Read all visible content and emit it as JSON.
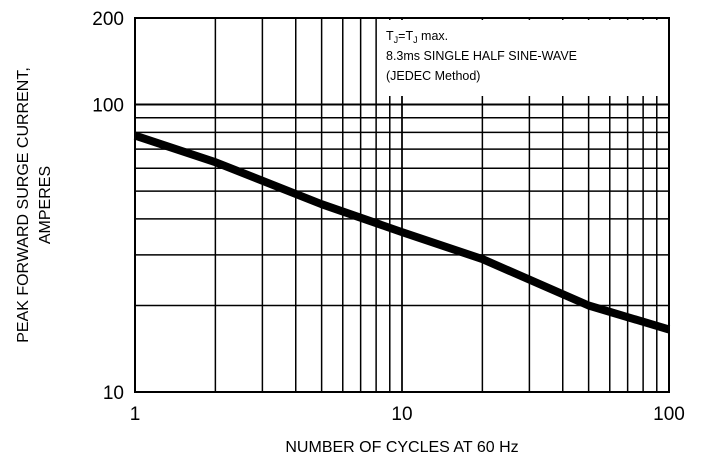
{
  "chart_data": {
    "type": "line",
    "x_scale": "log",
    "y_scale": "log",
    "xlim": [
      1,
      100
    ],
    "ylim": [
      10,
      200
    ],
    "x_ticks": [
      {
        "value": 1,
        "label": "1"
      },
      {
        "value": 10,
        "label": "10"
      },
      {
        "value": 100,
        "label": "100"
      }
    ],
    "y_ticks": [
      {
        "value": 10,
        "label": "10"
      },
      {
        "value": 100,
        "label": "100"
      },
      {
        "value": 200,
        "label": "200"
      }
    ],
    "xlabel": "NUMBER OF CYCLES AT 60 Hz",
    "ylabel_lines": [
      "PEAK FORWARD SURGE CURRENT,",
      "AMPERES"
    ],
    "annotation": {
      "line1_prefix": "T",
      "line1_sub1": "J",
      "line1_mid": "=T",
      "line1_sub2": "J",
      "line1_suffix": " max.",
      "line2": "8.3ms SINGLE HALF SINE-WAVE",
      "line3": "(JEDEC Method)"
    },
    "grid": true,
    "series": [
      {
        "x": [
          1,
          2,
          5,
          10,
          20,
          50,
          100
        ],
        "y": [
          78,
          63,
          45,
          36,
          29,
          20,
          16.5
        ]
      }
    ]
  }
}
